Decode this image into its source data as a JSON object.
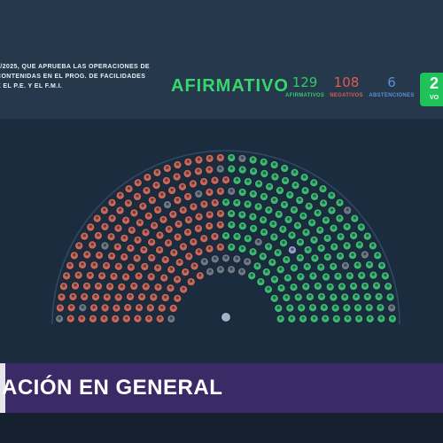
{
  "motion": {
    "lines": [
      "0/2025, QUE APRUEBA LAS OPERACIONES DE",
      "CONTENIDAS EN EL PROG. DE FACILIDADES",
      "E EL P.E. Y EL F.M.I."
    ]
  },
  "result": {
    "label": "AFIRMATIVO",
    "affirmative": {
      "count": "129",
      "label": "AFIRMATIVOS",
      "color": "#34c869"
    },
    "negative": {
      "count": "108",
      "label": "NEGATIVOS",
      "color": "#e05a50"
    },
    "abstentions": {
      "count": "6",
      "label": "ABSTENCIONES",
      "color": "#5b8fd6"
    },
    "total": {
      "count": "2",
      "label": "VO"
    }
  },
  "chamber": {
    "seat_colors": {
      "affirmative": "#3bb873",
      "negative": "#c8675a",
      "absent": "#6f7a86",
      "abstention": "#8aa3c8",
      "president": "#9fb3cc"
    },
    "affirmative_seats": 129,
    "negative_seats": 108,
    "abstention_seats": 6
  },
  "banner": {
    "title": "ACIÓN EN GENERAL"
  }
}
